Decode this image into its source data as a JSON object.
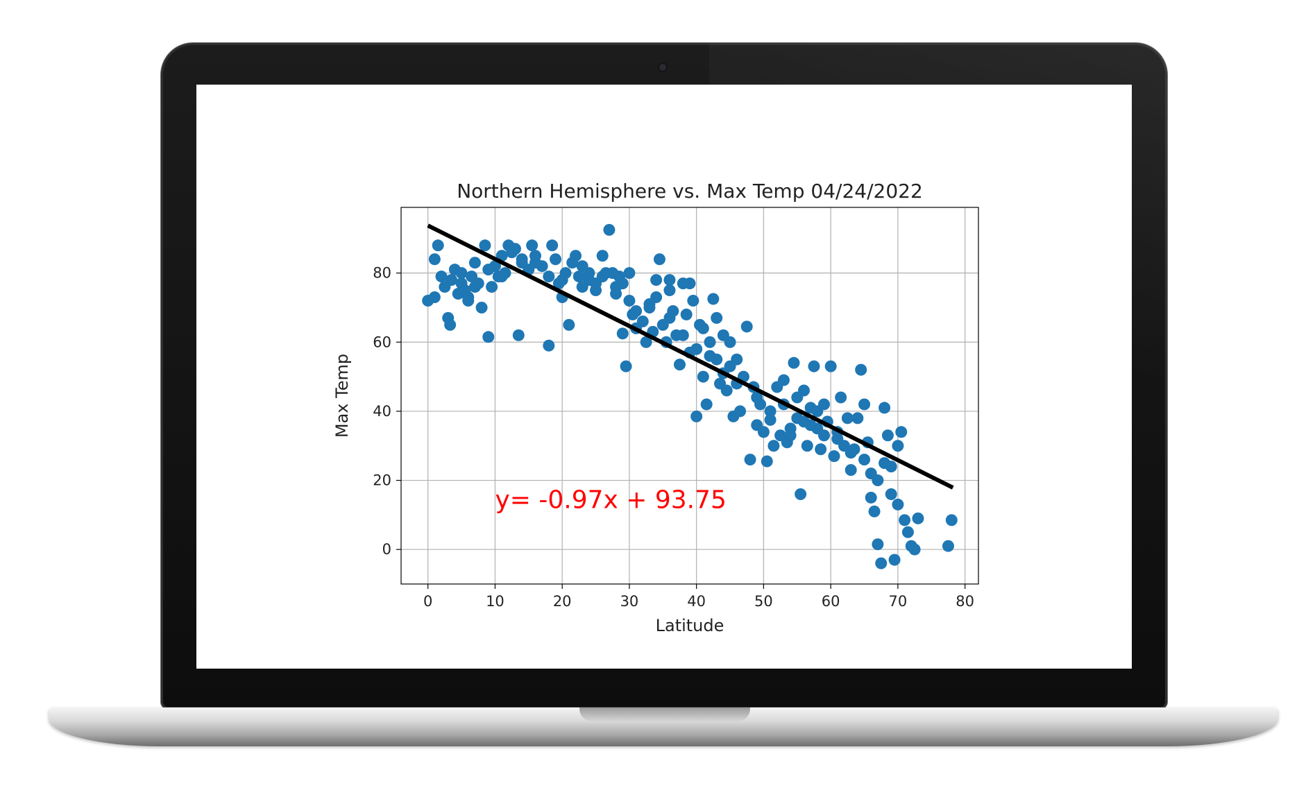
{
  "chart_data": {
    "type": "scatter",
    "title": "Northern Hemisphere vs. Max Temp 04/24/2022",
    "xlabel": "Latitude",
    "ylabel": "Max Temp",
    "xlim": [
      -4,
      82
    ],
    "ylim": [
      -10,
      99
    ],
    "xticks": [
      0,
      10,
      20,
      30,
      40,
      50,
      60,
      70,
      80
    ],
    "yticks": [
      0,
      20,
      40,
      60,
      80
    ],
    "grid": true,
    "point_color": "#1f77b4",
    "regression": {
      "slope": -0.97,
      "intercept": 93.75,
      "x_range": [
        0,
        78.2
      ],
      "color": "#000000",
      "equation_label": "y= -0.97x + 93.75",
      "label_color": "#ff0000",
      "label_at": [
        10,
        12
      ]
    },
    "points": [
      [
        0,
        72
      ],
      [
        1,
        73
      ],
      [
        1,
        84
      ],
      [
        1.5,
        88
      ],
      [
        2,
        79
      ],
      [
        2.5,
        76
      ],
      [
        3,
        67
      ],
      [
        3.3,
        65
      ],
      [
        3.5,
        78
      ],
      [
        4,
        81
      ],
      [
        4.5,
        74
      ],
      [
        5,
        77
      ],
      [
        5.5,
        75
      ],
      [
        6,
        73
      ],
      [
        6.5,
        79
      ],
      [
        7,
        83
      ],
      [
        7.5,
        77
      ],
      [
        8,
        70
      ],
      [
        8.5,
        88
      ],
      [
        9,
        61.5
      ],
      [
        9.5,
        76
      ],
      [
        10,
        82
      ],
      [
        10.5,
        79
      ],
      [
        11,
        85
      ],
      [
        11.5,
        80
      ],
      [
        12,
        88
      ],
      [
        12.5,
        86
      ],
      [
        13,
        87
      ],
      [
        13.5,
        62
      ],
      [
        14,
        84
      ],
      [
        15,
        81
      ],
      [
        15.5,
        88
      ],
      [
        16,
        83
      ],
      [
        17,
        82
      ],
      [
        18,
        59
      ],
      [
        18.5,
        88
      ],
      [
        19,
        84
      ],
      [
        19.5,
        77
      ],
      [
        20,
        73
      ],
      [
        20.5,
        80
      ],
      [
        21,
        65
      ],
      [
        21.5,
        83
      ],
      [
        22,
        85
      ],
      [
        22.5,
        79
      ],
      [
        23,
        76
      ],
      [
        24,
        78
      ],
      [
        25,
        77
      ],
      [
        26,
        85
      ],
      [
        26.5,
        80
      ],
      [
        27,
        92.5
      ],
      [
        27.5,
        80
      ],
      [
        28,
        76
      ],
      [
        28.5,
        79
      ],
      [
        29,
        62.5
      ],
      [
        29.5,
        53
      ],
      [
        30,
        80
      ],
      [
        30.5,
        68
      ],
      [
        31,
        69
      ],
      [
        32,
        66
      ],
      [
        32.5,
        60
      ],
      [
        33,
        71
      ],
      [
        33.5,
        63
      ],
      [
        34,
        78
      ],
      [
        34.5,
        84
      ],
      [
        35,
        65
      ],
      [
        35.5,
        60
      ],
      [
        36,
        75
      ],
      [
        36.5,
        69
      ],
      [
        37,
        62
      ],
      [
        37.5,
        53.5
      ],
      [
        38,
        77
      ],
      [
        38.5,
        68
      ],
      [
        39,
        57
      ],
      [
        39.5,
        72
      ],
      [
        40,
        38.5
      ],
      [
        40.5,
        65
      ],
      [
        41,
        50
      ],
      [
        41.5,
        42
      ],
      [
        42,
        60
      ],
      [
        42.5,
        72.5
      ],
      [
        43,
        55
      ],
      [
        43.5,
        48
      ],
      [
        44,
        62
      ],
      [
        44.5,
        46
      ],
      [
        45,
        53
      ],
      [
        45.5,
        38.5
      ],
      [
        46,
        55
      ],
      [
        46.5,
        40
      ],
      [
        47,
        50
      ],
      [
        47.5,
        64.5
      ],
      [
        48,
        26
      ],
      [
        48.5,
        47
      ],
      [
        49,
        36
      ],
      [
        49.5,
        42
      ],
      [
        50,
        34
      ],
      [
        50.5,
        25.5
      ],
      [
        51,
        37.5
      ],
      [
        51.5,
        30
      ],
      [
        52,
        47
      ],
      [
        52.5,
        33
      ],
      [
        53,
        49
      ],
      [
        53.5,
        31
      ],
      [
        54,
        35
      ],
      [
        54.5,
        54
      ],
      [
        55,
        44
      ],
      [
        55.5,
        16
      ],
      [
        56,
        37
      ],
      [
        56.5,
        30
      ],
      [
        57,
        41
      ],
      [
        57.5,
        53
      ],
      [
        58,
        35
      ],
      [
        58.5,
        29
      ],
      [
        59,
        42
      ],
      [
        59.5,
        37
      ],
      [
        60,
        53
      ],
      [
        60.5,
        27
      ],
      [
        61,
        32
      ],
      [
        61.5,
        44
      ],
      [
        62,
        30
      ],
      [
        62.5,
        38
      ],
      [
        63,
        23
      ],
      [
        63.5,
        29
      ],
      [
        64,
        38
      ],
      [
        64.5,
        52
      ],
      [
        65,
        42
      ],
      [
        65.5,
        31
      ],
      [
        66,
        22
      ],
      [
        66.5,
        11
      ],
      [
        67,
        20
      ],
      [
        67.5,
        -4
      ],
      [
        68,
        41
      ],
      [
        68.5,
        33
      ],
      [
        69,
        24
      ],
      [
        69.5,
        -3
      ],
      [
        70,
        13
      ],
      [
        70.5,
        34
      ],
      [
        71,
        8.5
      ],
      [
        71.5,
        5
      ],
      [
        72,
        1
      ],
      [
        72.5,
        0
      ],
      [
        73,
        9
      ],
      [
        77.5,
        1
      ],
      [
        78,
        8.5
      ],
      [
        5,
        80
      ],
      [
        6,
        72
      ],
      [
        7,
        76
      ],
      [
        9,
        81
      ],
      [
        11,
        79
      ],
      [
        14,
        83
      ],
      [
        16,
        85
      ],
      [
        18,
        79
      ],
      [
        20,
        78
      ],
      [
        23,
        82
      ],
      [
        25,
        75
      ],
      [
        28,
        74
      ],
      [
        31,
        64
      ],
      [
        34,
        73
      ],
      [
        36,
        67
      ],
      [
        38,
        62
      ],
      [
        40,
        58
      ],
      [
        42,
        56
      ],
      [
        44,
        51
      ],
      [
        46,
        48
      ],
      [
        49,
        44
      ],
      [
        51,
        40
      ],
      [
        53,
        42
      ],
      [
        55,
        38
      ],
      [
        57,
        36
      ],
      [
        59,
        33
      ],
      [
        61,
        34
      ],
      [
        63,
        28
      ],
      [
        65,
        26
      ],
      [
        66,
        15
      ],
      [
        68,
        25
      ],
      [
        69,
        16
      ],
      [
        67,
        1.5
      ],
      [
        70,
        30
      ],
      [
        54,
        33
      ],
      [
        56,
        46
      ],
      [
        58,
        40
      ],
      [
        39,
        77
      ],
      [
        41,
        64
      ],
      [
        43,
        67
      ],
      [
        45,
        60
      ],
      [
        36,
        78
      ],
      [
        33,
        70
      ],
      [
        30,
        72
      ],
      [
        29,
        77
      ],
      [
        26,
        79
      ],
      [
        24,
        80
      ]
    ]
  }
}
